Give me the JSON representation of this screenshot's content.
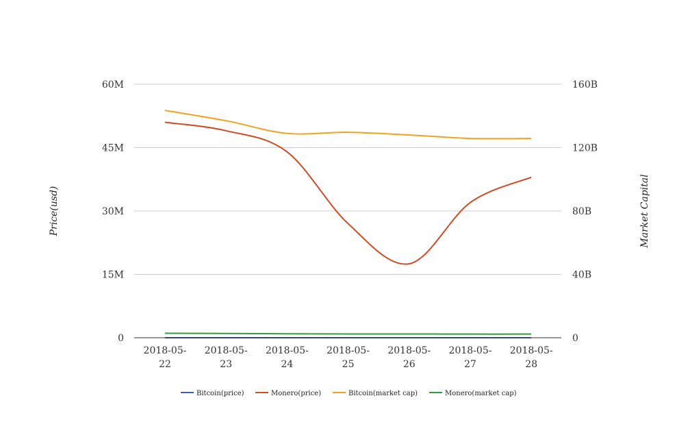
{
  "chart_data": {
    "type": "line",
    "categories": [
      "2018-05-22",
      "2018-05-23",
      "2018-05-24",
      "2018-05-25",
      "2018-05-26",
      "2018-05-27",
      "2018-05-28"
    ],
    "category_lines": [
      [
        "2018-05-",
        "22"
      ],
      [
        "2018-05-",
        "23"
      ],
      [
        "2018-05-",
        "24"
      ],
      [
        "2018-05-",
        "25"
      ],
      [
        "2018-05-",
        "26"
      ],
      [
        "2018-05-",
        "27"
      ],
      [
        "2018-05-",
        "28"
      ]
    ],
    "ylabel": "Price(usd)",
    "y2label": "Market Capital",
    "ylim": [
      0,
      60000000
    ],
    "y2lim": [
      0,
      160000000000
    ],
    "yticks": [
      "0",
      "15M",
      "30M",
      "45M",
      "60M"
    ],
    "y2ticks": [
      "0",
      "40B",
      "80B",
      "120B",
      "160B"
    ],
    "grid": true,
    "legend_position": "bottom",
    "series": [
      {
        "name": "Bitcoin(price)",
        "axis": "left",
        "color": "#3b5bb5",
        "values": [
          8000,
          7600,
          7500,
          7600,
          7500,
          7400,
          7300
        ]
      },
      {
        "name": "Monero(price)",
        "axis": "left",
        "color": "#d04a23",
        "values": [
          51000000,
          49000000,
          44000000,
          27000000,
          17500000,
          32000000,
          38000000
        ]
      },
      {
        "name": "Bitcoin(market cap)",
        "axis": "right",
        "color": "#f0a21c",
        "values": [
          143500000000,
          137000000000,
          129000000000,
          129700000000,
          128000000000,
          125800000000,
          125800000000
        ]
      },
      {
        "name": "Monero(market cap)",
        "axis": "right",
        "color": "#2e9e3c",
        "values": [
          2800000000,
          2700000000,
          2500000000,
          2400000000,
          2400000000,
          2300000000,
          2300000000
        ]
      }
    ]
  }
}
